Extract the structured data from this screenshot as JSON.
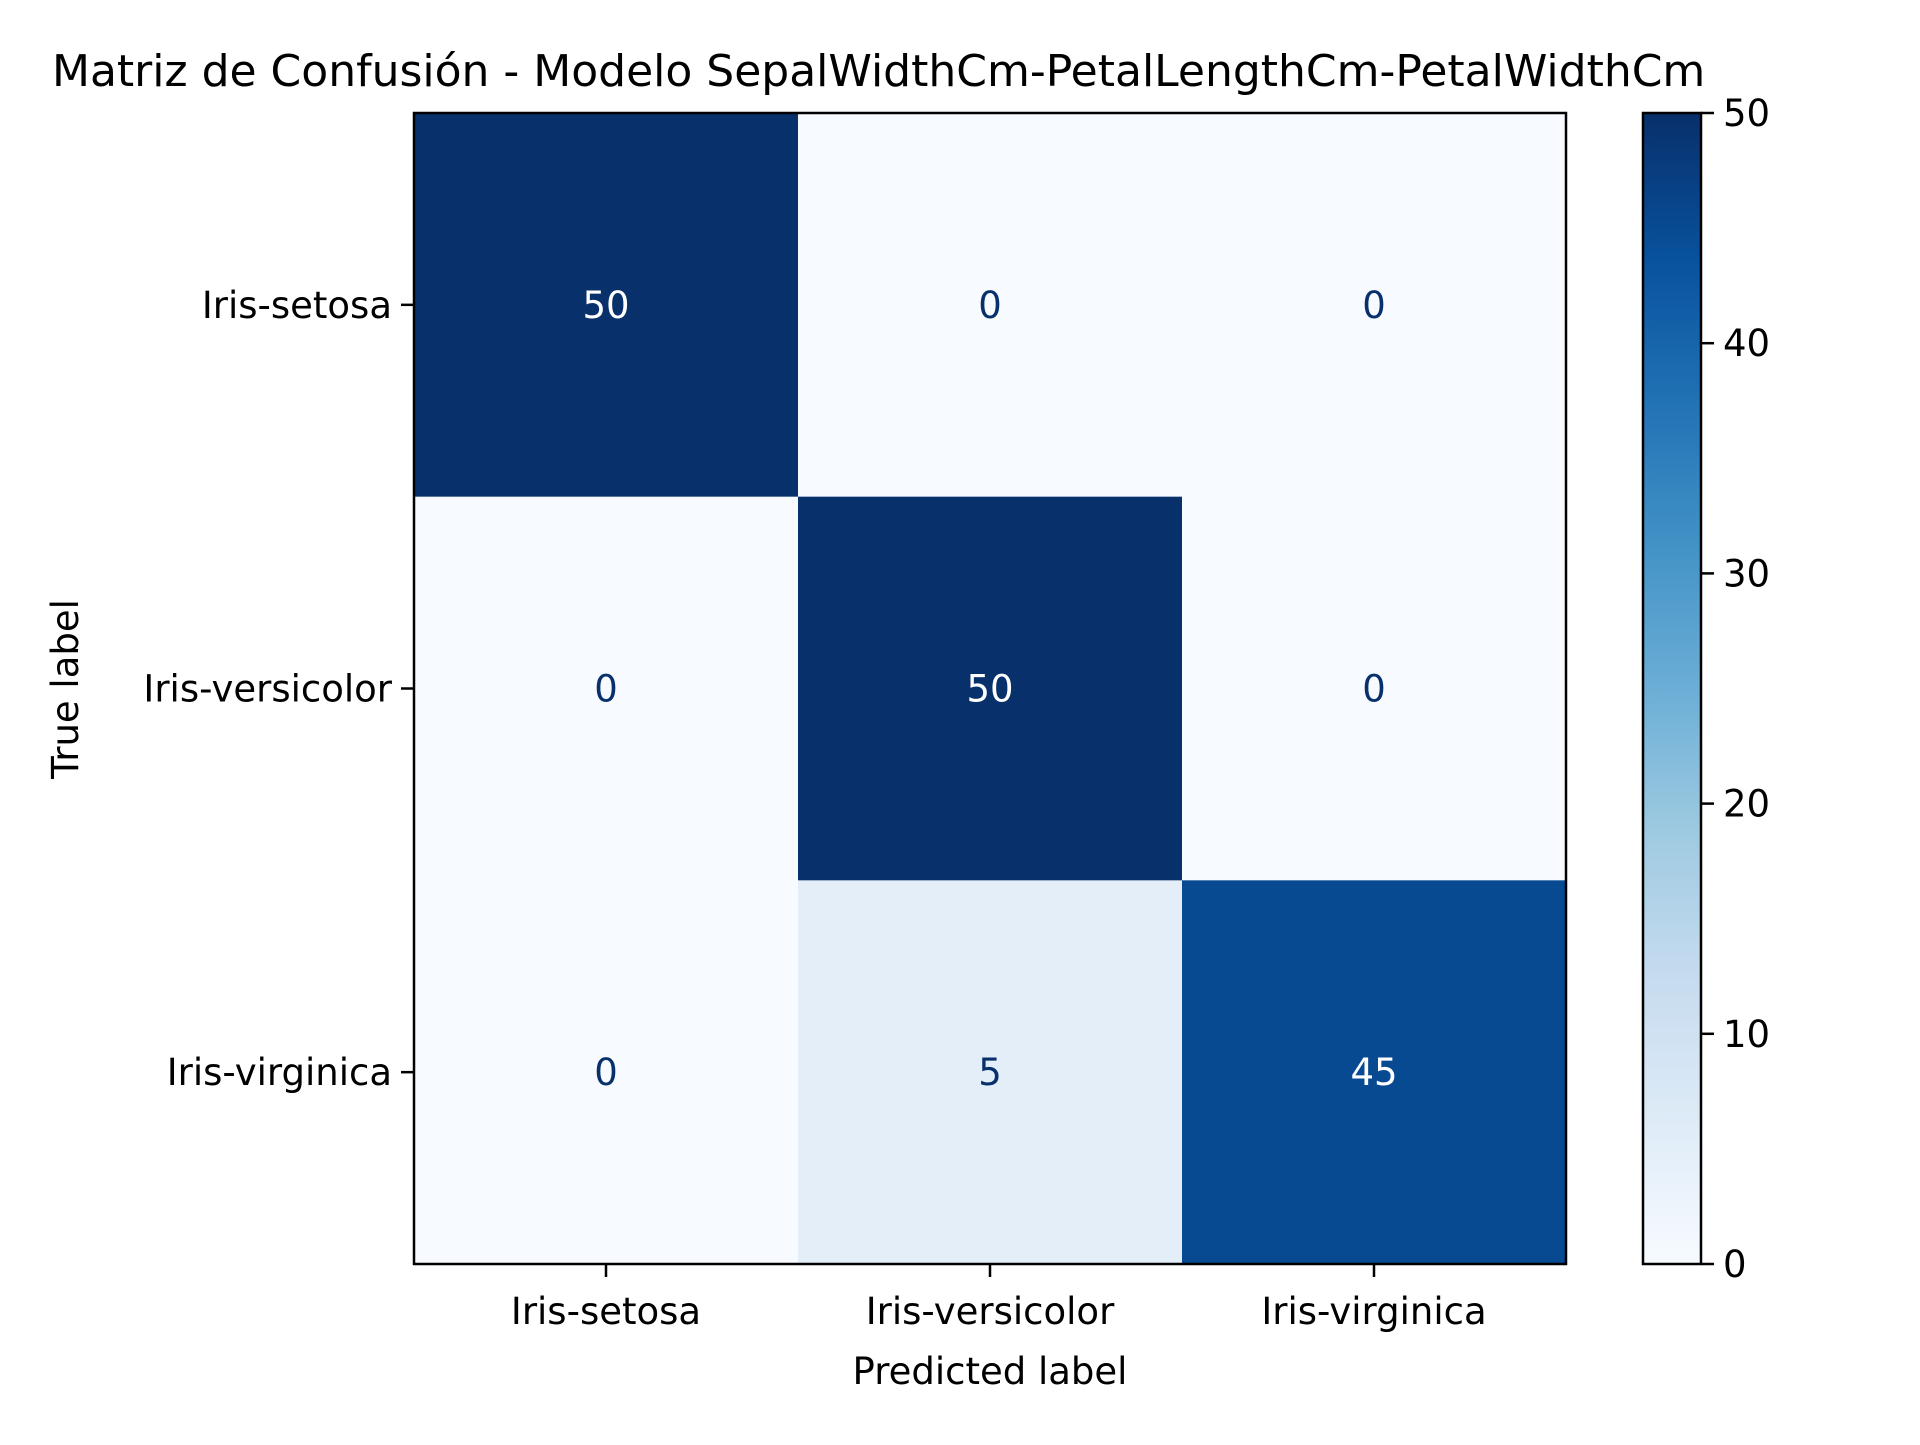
{
  "chart_data": {
    "type": "heatmap",
    "title": "Matriz de Confusión - Modelo SepalWidthCm-PetalLengthCm-PetalWidthCm",
    "xlabel": "Predicted label",
    "ylabel": "True label",
    "x_categories": [
      "Iris-setosa",
      "Iris-versicolor",
      "Iris-virginica"
    ],
    "y_categories": [
      "Iris-setosa",
      "Iris-versicolor",
      "Iris-virginica"
    ],
    "values": [
      [
        50,
        0,
        0
      ],
      [
        0,
        50,
        0
      ],
      [
        0,
        5,
        45
      ]
    ],
    "colormap": "Blues",
    "colorbar": {
      "range": [
        0,
        50
      ],
      "ticks": [
        0,
        10,
        20,
        30,
        40,
        50
      ],
      "tick_labels": [
        "0",
        "10",
        "20",
        "30",
        "40",
        "50"
      ]
    },
    "colors": {
      "cmap_low": "#f7fbff",
      "cmap_high": "#08306b",
      "text_on_dark": "#ffffff",
      "text_on_light": "#08306b"
    }
  }
}
